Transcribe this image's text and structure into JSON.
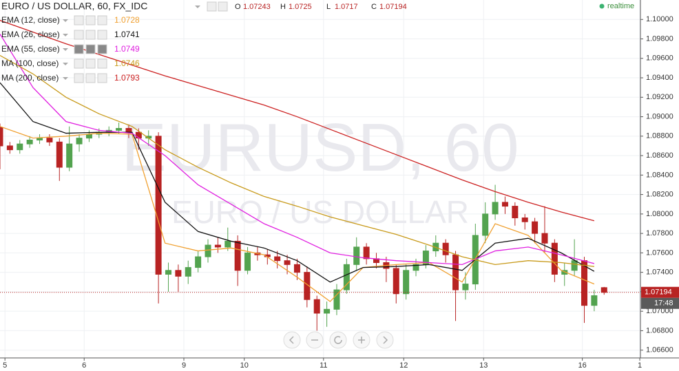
{
  "chart_data": {
    "type": "candlestick",
    "title": "EURO / US DOLLAR, 60, FX_IDC",
    "status": "realtime",
    "watermark": "EURUSD, 60",
    "watermark_subtitle": "EURO / US DOLLAR",
    "ohlc_labels": [
      "O",
      "H",
      "L",
      "C"
    ],
    "last_time": "17:48",
    "up_color": "#53a34f",
    "down_color": "#b82323",
    "grid": true,
    "xlim": [
      0,
      194
    ],
    "ylim": [
      1.0652,
      1.102
    ],
    "xticks": [
      {
        "value": 1.5,
        "label": "5"
      },
      {
        "value": 25.5,
        "label": "6"
      },
      {
        "value": 55.7,
        "label": "9"
      },
      {
        "value": 74,
        "label": "10"
      },
      {
        "value": 98,
        "label": "11"
      },
      {
        "value": 122.3,
        "label": "12"
      },
      {
        "value": 146.5,
        "label": "13"
      },
      {
        "value": 176.4,
        "label": "16"
      },
      {
        "value": 193.8,
        "label": "1"
      }
    ],
    "yticks": [
      {
        "value": 1.1,
        "label": "1.10000"
      },
      {
        "value": 1.098,
        "label": "1.09800"
      },
      {
        "value": 1.096,
        "label": "1.09600"
      },
      {
        "value": 1.094,
        "label": "1.09400"
      },
      {
        "value": 1.092,
        "label": "1.09200"
      },
      {
        "value": 1.09,
        "label": "1.09000"
      },
      {
        "value": 1.088,
        "label": "1.08800"
      },
      {
        "value": 1.086,
        "label": "1.08600"
      },
      {
        "value": 1.084,
        "label": "1.08400"
      },
      {
        "value": 1.082,
        "label": "1.08200"
      },
      {
        "value": 1.08,
        "label": "1.08000"
      },
      {
        "value": 1.078,
        "label": "1.07800"
      },
      {
        "value": 1.076,
        "label": "1.07600"
      },
      {
        "value": 1.074,
        "label": "1.07400"
      },
      {
        "value": 1.072,
        "label": "1.07200"
      },
      {
        "value": 1.07,
        "label": "1.07000"
      },
      {
        "value": 1.068,
        "label": "1.06800"
      },
      {
        "value": 1.066,
        "label": "1.06600"
      }
    ],
    "x": [
      0,
      3,
      6,
      9,
      12,
      15,
      18,
      21,
      24,
      27,
      30,
      33,
      36,
      39,
      42,
      45,
      48,
      51,
      54,
      57,
      60,
      63,
      66,
      69,
      72,
      75,
      78,
      81,
      84,
      87,
      90,
      93,
      96,
      99,
      102,
      105,
      108,
      111,
      114,
      117,
      120,
      123,
      126,
      129,
      132,
      135,
      138,
      141,
      144,
      147,
      150,
      153,
      156,
      159,
      162,
      165,
      168,
      171,
      174,
      177,
      180,
      183
    ],
    "open": [
      1.0889,
      1.087,
      1.0866,
      1.0872,
      1.0876,
      1.0878,
      1.0874,
      1.0848,
      1.0872,
      1.0878,
      1.0882,
      1.0884,
      1.0886,
      1.0888,
      1.0884,
      1.0878,
      1.088,
      1.0738,
      1.0742,
      1.0736,
      1.0745,
      1.0756,
      1.0768,
      1.0766,
      1.0772,
      1.0742,
      1.076,
      1.0758,
      1.0756,
      1.0752,
      1.0748,
      1.074,
      1.0712,
      1.0698,
      1.0702,
      1.0722,
      1.0748,
      1.0766,
      1.0754,
      1.075,
      1.0744,
      1.0718,
      1.0742,
      1.0748,
      1.0762,
      1.077,
      1.0758,
      1.0722,
      1.0728,
      1.0778,
      1.08,
      1.0812,
      1.0808,
      1.0796,
      1.0792,
      1.078,
      1.077,
      1.0738,
      1.0742,
      1.0752,
      1.0706,
      1.07243
    ],
    "high": [
      1.0893,
      1.0874,
      1.0876,
      1.088,
      1.0882,
      1.0882,
      1.0878,
      1.089,
      1.0882,
      1.0886,
      1.0888,
      1.089,
      1.0894,
      1.0892,
      1.0888,
      1.0886,
      1.0884,
      1.075,
      1.0748,
      1.0752,
      1.0762,
      1.0774,
      1.0776,
      1.0786,
      1.0778,
      1.0766,
      1.0766,
      1.0764,
      1.0762,
      1.0758,
      1.0754,
      1.0746,
      1.0716,
      1.071,
      1.0728,
      1.0754,
      1.0776,
      1.077,
      1.076,
      1.0756,
      1.0748,
      1.0748,
      1.0754,
      1.0768,
      1.0778,
      1.0774,
      1.0762,
      1.074,
      1.079,
      1.0812,
      1.083,
      1.0818,
      1.0812,
      1.08,
      1.0796,
      1.0808,
      1.0774,
      1.075,
      1.0774,
      1.0756,
      1.0722,
      1.0725
    ],
    "low": [
      1.0846,
      1.0862,
      1.0862,
      1.0868,
      1.0872,
      1.087,
      1.0834,
      1.0844,
      1.0864,
      1.0874,
      1.0878,
      1.088,
      1.0882,
      1.0878,
      1.0866,
      1.087,
      1.0708,
      1.072,
      1.072,
      1.0728,
      1.074,
      1.075,
      1.076,
      1.0762,
      1.0726,
      1.0738,
      1.0752,
      1.0748,
      1.0744,
      1.0738,
      1.0732,
      1.0704,
      1.068,
      1.0684,
      1.0696,
      1.0718,
      1.0742,
      1.0748,
      1.0744,
      1.073,
      1.0708,
      1.0712,
      1.0736,
      1.0744,
      1.0756,
      1.075,
      1.069,
      1.0712,
      1.0722,
      1.077,
      1.0794,
      1.08,
      1.0788,
      1.0784,
      1.077,
      1.076,
      1.073,
      1.0726,
      1.0736,
      1.0688,
      1.07,
      1.0717
    ],
    "close": [
      1.087,
      1.0866,
      1.0872,
      1.0876,
      1.0878,
      1.0874,
      1.0848,
      1.0872,
      1.0878,
      1.0882,
      1.0884,
      1.0886,
      1.0888,
      1.0884,
      1.0878,
      1.088,
      1.0738,
      1.0742,
      1.0736,
      1.0745,
      1.0756,
      1.0768,
      1.0766,
      1.0772,
      1.0742,
      1.076,
      1.0758,
      1.0756,
      1.0752,
      1.0748,
      1.074,
      1.0712,
      1.0698,
      1.0702,
      1.0722,
      1.0748,
      1.0766,
      1.0754,
      1.075,
      1.0744,
      1.0718,
      1.0742,
      1.0748,
      1.0762,
      1.077,
      1.0758,
      1.0722,
      1.0728,
      1.0778,
      1.08,
      1.0812,
      1.0808,
      1.0796,
      1.0792,
      1.078,
      1.077,
      1.0738,
      1.0742,
      1.0752,
      1.0706,
      1.0716,
      1.07194
    ],
    "series": [
      {
        "name": "EMA (12, close)",
        "color": "#f0a030",
        "x": [
          0,
          10,
          20,
          30,
          40,
          50,
          60,
          70,
          80,
          90,
          100,
          110,
          120,
          130,
          140,
          150,
          160,
          170,
          180
        ],
        "values": [
          1.089,
          1.0878,
          1.088,
          1.0883,
          1.0882,
          1.077,
          1.0762,
          1.0765,
          1.0758,
          1.0735,
          1.071,
          1.0745,
          1.0748,
          1.075,
          1.073,
          1.079,
          1.0778,
          1.0742,
          1.0728
        ]
      },
      {
        "name": "EMA (26, close)",
        "color": "#111111",
        "x": [
          0,
          10,
          20,
          30,
          40,
          50,
          60,
          70,
          80,
          90,
          100,
          110,
          120,
          130,
          140,
          150,
          160,
          170,
          180
        ],
        "values": [
          1.0935,
          1.0895,
          1.0883,
          1.0884,
          1.0884,
          1.0812,
          1.0782,
          1.0772,
          1.0765,
          1.0752,
          1.073,
          1.0745,
          1.0746,
          1.0748,
          1.0742,
          1.077,
          1.0775,
          1.076,
          1.0741
        ]
      },
      {
        "name": "EMA (55, close)",
        "color": "#e020e0",
        "x": [
          0,
          10,
          20,
          30,
          40,
          50,
          60,
          70,
          80,
          90,
          100,
          110,
          120,
          130,
          140,
          150,
          160,
          170,
          180
        ],
        "values": [
          1.0985,
          1.093,
          1.0895,
          1.0886,
          1.0883,
          1.086,
          1.083,
          1.081,
          1.079,
          1.0776,
          1.076,
          1.0755,
          1.0752,
          1.075,
          1.0748,
          1.0762,
          1.0766,
          1.0758,
          1.0749
        ]
      },
      {
        "name": "MA (100, close)",
        "color": "#c89a1a",
        "x": [
          0,
          10,
          20,
          30,
          40,
          50,
          60,
          70,
          80,
          90,
          100,
          110,
          120,
          130,
          140,
          150,
          160,
          170,
          180
        ],
        "values": [
          1.0963,
          1.0944,
          1.092,
          1.0903,
          1.089,
          1.0866,
          1.0848,
          1.0832,
          1.0818,
          1.0808,
          1.0797,
          1.0788,
          1.0779,
          1.0768,
          1.0756,
          1.0748,
          1.0752,
          1.075,
          1.0746
        ]
      },
      {
        "name": "MA (200, close)",
        "color": "#cc2020",
        "x": [
          0,
          10,
          20,
          30,
          40,
          50,
          60,
          70,
          80,
          90,
          100,
          110,
          120,
          130,
          140,
          150,
          160,
          170,
          180
        ],
        "values": [
          1.0999,
          1.0987,
          1.0975,
          1.0964,
          1.0953,
          1.0942,
          1.0932,
          1.0922,
          1.0912,
          1.09,
          1.0887,
          1.0874,
          1.0861,
          1.0848,
          1.0835,
          1.0823,
          1.0812,
          1.0802,
          1.0793
        ]
      }
    ]
  }
}
